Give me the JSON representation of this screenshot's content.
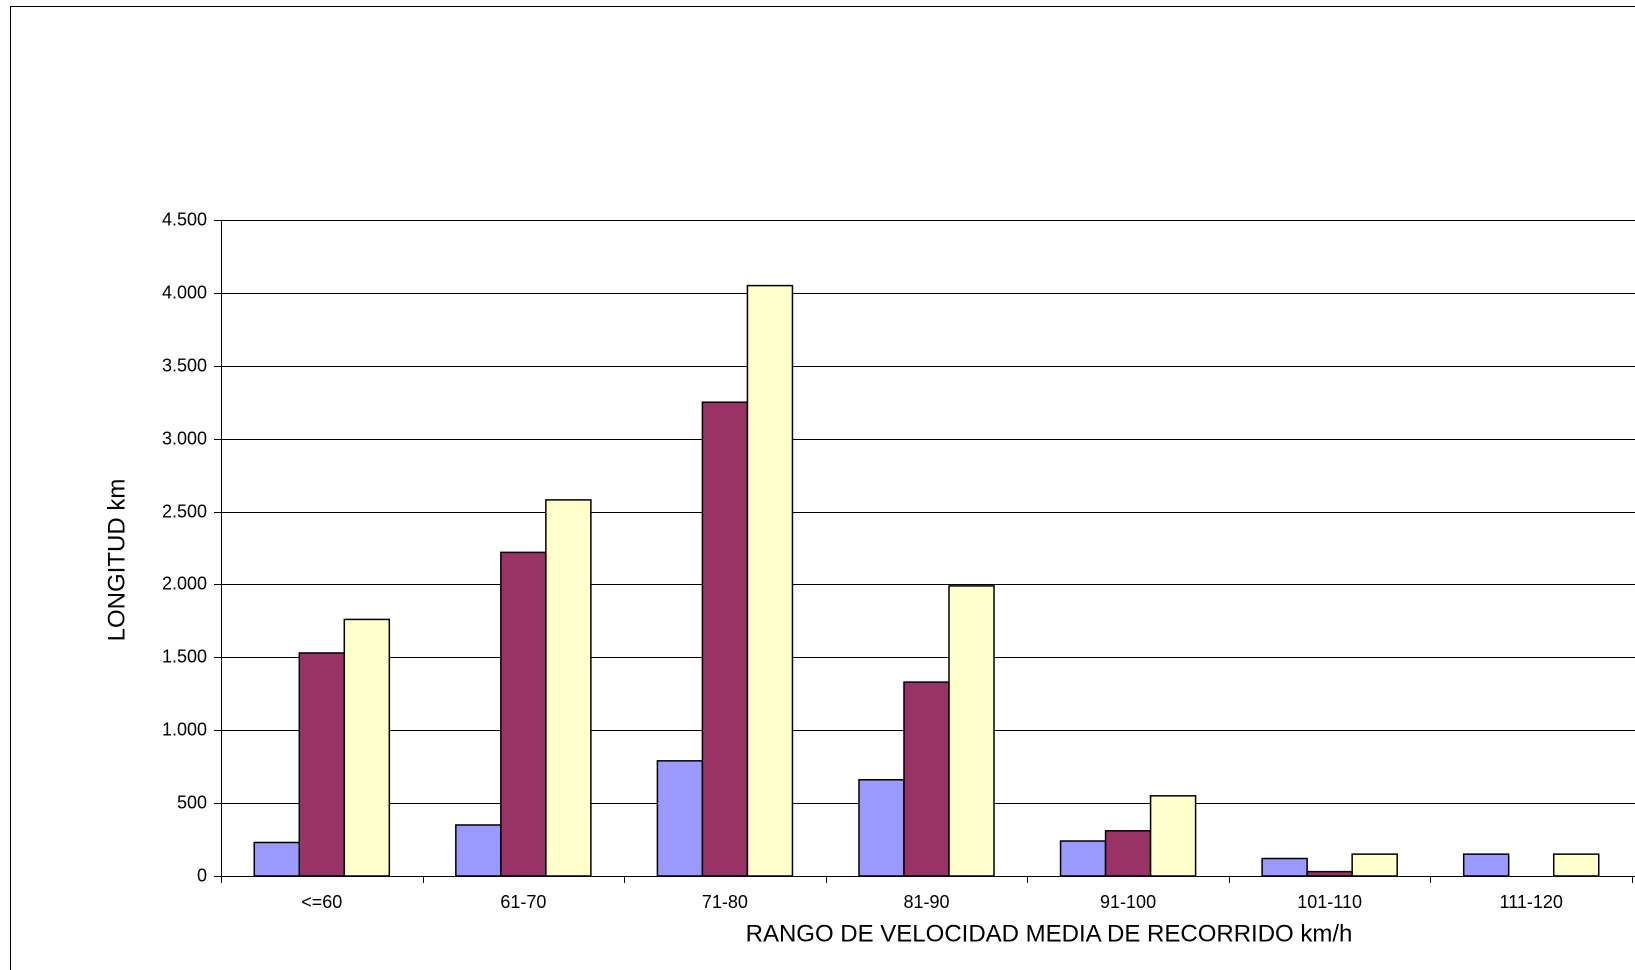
{
  "chart_data": {
    "type": "bar",
    "x_label": "RANGO DE VELOCIDAD MEDIA DE RECORRIDO km/h",
    "y_label": "LONGITUD km",
    "categories": [
      "<=60",
      "61-70",
      "71-80",
      "81-90",
      "91-100",
      "101-110",
      "111-120"
    ],
    "series": [
      {
        "color": "#9999ff",
        "values": [
          230,
          350,
          790,
          660,
          240,
          120,
          150
        ]
      },
      {
        "color": "#993366",
        "values": [
          1530,
          2220,
          3250,
          1330,
          310,
          30,
          null
        ]
      },
      {
        "color": "#ffffcc",
        "values": [
          1760,
          2580,
          4050,
          1990,
          550,
          150,
          150
        ]
      }
    ],
    "ylim": [
      0,
      4500
    ],
    "yticks": [
      0,
      500,
      {
        "value": 1000,
        "label": "1.000"
      },
      {
        "value": 1500,
        "label": "1.500"
      },
      {
        "value": 2000,
        "label": "2.000"
      },
      {
        "value": 2500,
        "label": "2.500"
      },
      {
        "value": 3000,
        "label": "3.000"
      },
      {
        "value": 3500,
        "label": "3.500"
      },
      {
        "value": 4000,
        "label": "4.000"
      },
      {
        "value": 4500,
        "label": "4.500"
      }
    ],
    "grid": true
  }
}
